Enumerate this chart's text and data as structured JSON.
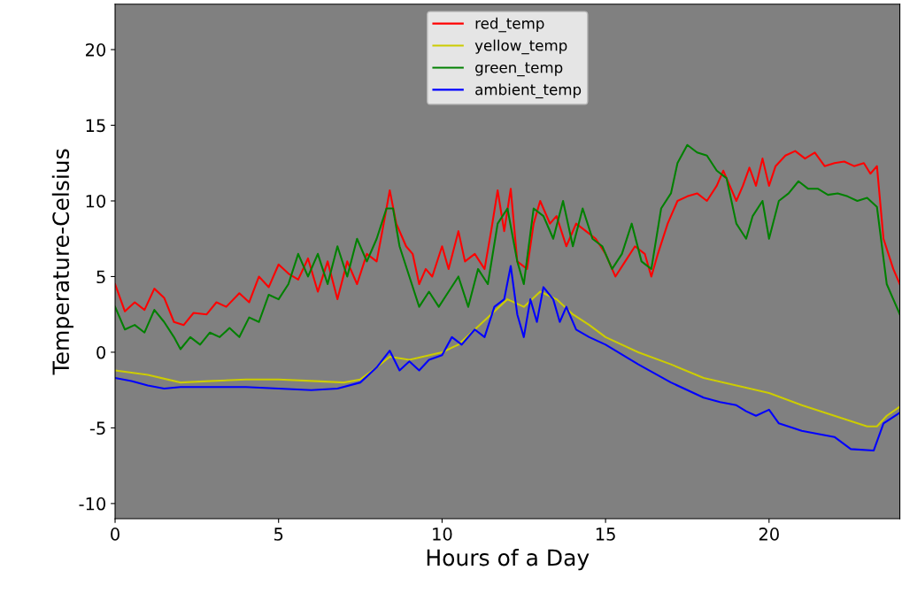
{
  "chart_data": {
    "type": "line",
    "xlabel": "Hours of a Day",
    "ylabel": "Temperature-Celsius",
    "xlim": [
      0,
      24
    ],
    "ylim": [
      -11,
      23
    ],
    "xticks": [
      0,
      5,
      10,
      15,
      20
    ],
    "yticks": [
      -10,
      -5,
      0,
      5,
      10,
      15,
      20
    ],
    "grid": false,
    "legend": "top",
    "marker": "none",
    "line_style": "solid",
    "series": [
      {
        "name": "red_temp",
        "color": "#ff0000",
        "x": [
          0,
          0.3,
          0.6,
          0.9,
          1.2,
          1.5,
          1.8,
          2.1,
          2.4,
          2.8,
          3.1,
          3.4,
          3.8,
          4.1,
          4.4,
          4.7,
          5.0,
          5.3,
          5.6,
          5.9,
          6.2,
          6.5,
          6.8,
          7.1,
          7.4,
          7.7,
          8.0,
          8.3,
          8.4,
          8.6,
          8.9,
          9.1,
          9.3,
          9.5,
          9.7,
          10.0,
          10.2,
          10.5,
          10.7,
          11.0,
          11.3,
          11.5,
          11.7,
          11.9,
          12.1,
          12.3,
          12.6,
          12.8,
          13.0,
          13.3,
          13.5,
          13.8,
          14.1,
          14.4,
          14.7,
          15.0,
          15.3,
          15.6,
          15.9,
          16.2,
          16.4,
          16.6,
          16.9,
          17.2,
          17.5,
          17.8,
          18.1,
          18.4,
          18.6,
          18.8,
          19.0,
          19.2,
          19.4,
          19.6,
          19.8,
          20.0,
          20.2,
          20.5,
          20.8,
          21.1,
          21.4,
          21.7,
          22.0,
          22.3,
          22.6,
          22.9,
          23.1,
          23.3,
          23.5,
          23.8,
          24
        ],
        "values": [
          4.5,
          2.7,
          3.3,
          2.8,
          4.2,
          3.6,
          2.0,
          1.8,
          2.6,
          2.5,
          3.3,
          3.0,
          3.9,
          3.3,
          5.0,
          4.3,
          5.8,
          5.2,
          4.8,
          6.2,
          4.0,
          6.0,
          3.5,
          6.0,
          4.5,
          6.5,
          6.0,
          9.5,
          10.7,
          8.5,
          7.0,
          6.5,
          4.5,
          5.5,
          5.0,
          7.0,
          5.5,
          8.0,
          6.0,
          6.5,
          5.5,
          8.0,
          10.7,
          8.0,
          10.8,
          6.0,
          5.5,
          8.5,
          10.0,
          8.5,
          9.0,
          7.0,
          8.5,
          8.0,
          7.5,
          6.5,
          5.0,
          6.0,
          7.0,
          6.5,
          5.0,
          6.5,
          8.5,
          10.0,
          10.3,
          10.5,
          10.0,
          11.0,
          12.0,
          11.0,
          10.0,
          11.0,
          12.2,
          11.0,
          12.8,
          11.0,
          12.3,
          13.0,
          13.3,
          12.8,
          13.2,
          12.3,
          12.5,
          12.6,
          12.3,
          12.5,
          11.8,
          12.3,
          7.5,
          5.5,
          4.5
        ]
      },
      {
        "name": "yellow_temp",
        "color": "#cccc00",
        "x": [
          0,
          1,
          2,
          3,
          4,
          5,
          6,
          7,
          7.5,
          8,
          8.4,
          9,
          10,
          10.5,
          11,
          11.5,
          12,
          12.5,
          13,
          13.5,
          14,
          14.5,
          15,
          16,
          17,
          18,
          19,
          20,
          21,
          22,
          23,
          23.3,
          23.6,
          24
        ],
        "values": [
          -1.2,
          -1.5,
          -2.0,
          -1.9,
          -1.8,
          -1.8,
          -1.9,
          -2.0,
          -1.8,
          -1.0,
          -0.3,
          -0.5,
          0.0,
          0.5,
          1.5,
          2.5,
          3.5,
          3.0,
          4.0,
          3.5,
          2.5,
          1.8,
          1.0,
          0.0,
          -0.8,
          -1.7,
          -2.2,
          -2.7,
          -3.5,
          -4.2,
          -4.9,
          -4.9,
          -4.2,
          -3.6
        ]
      },
      {
        "name": "green_temp",
        "color": "#008000",
        "x": [
          0,
          0.3,
          0.6,
          0.9,
          1.2,
          1.5,
          1.8,
          2.0,
          2.3,
          2.6,
          2.9,
          3.2,
          3.5,
          3.8,
          4.1,
          4.4,
          4.7,
          5.0,
          5.3,
          5.6,
          5.9,
          6.2,
          6.5,
          6.8,
          7.1,
          7.4,
          7.7,
          8.0,
          8.3,
          8.5,
          8.7,
          9.0,
          9.3,
          9.6,
          9.9,
          10.2,
          10.5,
          10.8,
          11.1,
          11.4,
          11.7,
          12.0,
          12.3,
          12.5,
          12.8,
          13.1,
          13.4,
          13.7,
          14.0,
          14.3,
          14.6,
          14.9,
          15.2,
          15.5,
          15.8,
          16.1,
          16.4,
          16.7,
          17.0,
          17.2,
          17.5,
          17.8,
          18.1,
          18.4,
          18.7,
          19.0,
          19.3,
          19.5,
          19.8,
          20.0,
          20.3,
          20.6,
          20.9,
          21.2,
          21.5,
          21.8,
          22.1,
          22.4,
          22.7,
          23.0,
          23.3,
          23.6,
          23.8,
          24
        ],
        "values": [
          3.0,
          1.5,
          1.8,
          1.3,
          2.8,
          2.0,
          1.0,
          0.2,
          1.0,
          0.5,
          1.3,
          1.0,
          1.6,
          1.0,
          2.3,
          2.0,
          3.8,
          3.5,
          4.5,
          6.5,
          5.0,
          6.5,
          4.5,
          7.0,
          5.0,
          7.5,
          6.0,
          7.5,
          9.5,
          9.5,
          7.0,
          5.0,
          3.0,
          4.0,
          3.0,
          4.0,
          5.0,
          3.0,
          5.5,
          4.5,
          8.5,
          9.5,
          6.0,
          4.5,
          9.5,
          9.0,
          7.5,
          10.0,
          7.0,
          9.5,
          7.5,
          7.0,
          5.5,
          6.5,
          8.5,
          6.0,
          5.5,
          9.5,
          10.5,
          12.5,
          13.7,
          13.2,
          13.0,
          12.0,
          11.5,
          8.5,
          7.5,
          9.0,
          10.0,
          7.5,
          10.0,
          10.5,
          11.3,
          10.8,
          10.8,
          10.4,
          10.5,
          10.3,
          10.0,
          10.2,
          9.6,
          4.5,
          3.5,
          2.5
        ]
      },
      {
        "name": "ambient_temp",
        "color": "#0000ff",
        "x": [
          0,
          0.5,
          1,
          1.5,
          2,
          3,
          4,
          5,
          6,
          6.8,
          7.5,
          8,
          8.4,
          8.7,
          9.0,
          9.3,
          9.6,
          10,
          10.3,
          10.6,
          11,
          11.3,
          11.6,
          11.9,
          12.1,
          12.3,
          12.5,
          12.7,
          12.9,
          13.1,
          13.4,
          13.6,
          13.8,
          14.1,
          14.5,
          15,
          16,
          17,
          18,
          18.5,
          19,
          19.3,
          19.6,
          20,
          20.3,
          21,
          22,
          22.5,
          23.2,
          23.5,
          24
        ],
        "values": [
          -1.7,
          -1.9,
          -2.2,
          -2.4,
          -2.3,
          -2.3,
          -2.3,
          -2.4,
          -2.5,
          -2.4,
          -2.0,
          -1.0,
          0.1,
          -1.2,
          -0.6,
          -1.2,
          -0.5,
          -0.2,
          1.0,
          0.5,
          1.5,
          1.0,
          3.0,
          3.5,
          5.7,
          2.5,
          1.0,
          3.5,
          2.0,
          4.3,
          3.5,
          2.0,
          3.0,
          1.5,
          1.0,
          0.5,
          -0.8,
          -2.0,
          -3.0,
          -3.3,
          -3.5,
          -3.9,
          -4.2,
          -3.8,
          -4.7,
          -5.2,
          -5.6,
          -6.4,
          -6.5,
          -4.7,
          -4.0
        ]
      }
    ]
  }
}
